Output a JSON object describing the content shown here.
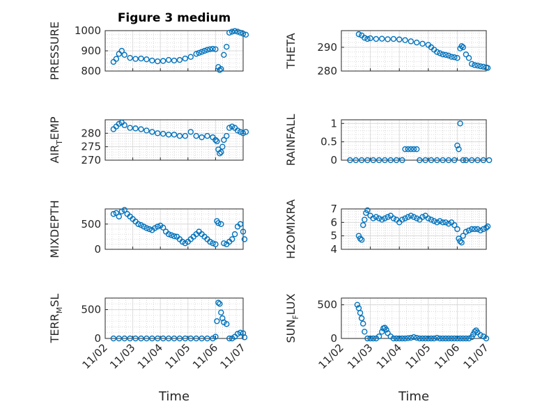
{
  "title": "Figure 3 medium",
  "x_tick_labels": [
    "11/02",
    "11/03",
    "11/04",
    "11/05",
    "11/06",
    "11/07"
  ],
  "marker_color": "#0072BD",
  "chart_data": [
    {
      "type": "scatter",
      "id": "pressure",
      "title": "Figure 3 medium",
      "ylabel": "PRESSURE",
      "ylabel_sub": "",
      "ylabel_post": "",
      "xlim": [
        0,
        5
      ],
      "ylim": [
        800,
        1000
      ],
      "yticks": [
        800,
        900,
        1000
      ],
      "xlabel": "",
      "grid": true,
      "x": [
        0.3,
        0.4,
        0.5,
        0.6,
        0.7,
        0.9,
        1.1,
        1.3,
        1.5,
        1.7,
        1.9,
        2.1,
        2.3,
        2.5,
        2.7,
        2.9,
        3.1,
        3.3,
        3.4,
        3.5,
        3.6,
        3.7,
        3.8,
        3.9,
        4.0,
        4.1,
        4.15,
        4.2,
        4.3,
        4.4,
        4.5,
        4.6,
        4.7,
        4.8,
        4.9,
        5.0,
        5.1
      ],
      "y": [
        845,
        860,
        885,
        900,
        880,
        865,
        860,
        862,
        858,
        852,
        848,
        850,
        855,
        852,
        855,
        862,
        870,
        885,
        890,
        895,
        900,
        905,
        908,
        910,
        908,
        820,
        805,
        810,
        880,
        920,
        990,
        995,
        998,
        995,
        990,
        985,
        980
      ]
    },
    {
      "type": "scatter",
      "id": "theta",
      "ylabel": "THETA",
      "ylabel_sub": "",
      "ylabel_post": "",
      "xlim": [
        0,
        5
      ],
      "ylim": [
        280,
        297
      ],
      "yticks": [
        280,
        290
      ],
      "xlabel": "",
      "grid": true,
      "x": [
        0.6,
        0.7,
        0.8,
        0.9,
        1.0,
        1.2,
        1.4,
        1.6,
        1.8,
        2.0,
        2.2,
        2.4,
        2.6,
        2.8,
        3.0,
        3.1,
        3.2,
        3.3,
        3.4,
        3.5,
        3.6,
        3.7,
        3.8,
        3.9,
        4.0,
        4.1,
        4.15,
        4.2,
        4.3,
        4.4,
        4.5,
        4.6,
        4.7,
        4.8,
        4.9,
        5.0,
        5.05
      ],
      "y": [
        295.5,
        295.0,
        294.0,
        293.5,
        293.8,
        293.5,
        293.6,
        293.4,
        293.5,
        293.3,
        293.0,
        292.5,
        292.0,
        291.5,
        291.0,
        290.0,
        289.0,
        288.0,
        287.5,
        287.0,
        286.8,
        286.5,
        286.0,
        285.8,
        285.5,
        289.5,
        290.5,
        290.0,
        287.0,
        285.5,
        283.0,
        282.5,
        282.3,
        282.0,
        281.8,
        281.5,
        281.3
      ]
    },
    {
      "type": "scatter",
      "id": "air_temp",
      "ylabel": "AIR",
      "ylabel_sub": "T",
      "ylabel_post": "EMP",
      "xlim": [
        0,
        5
      ],
      "ylim": [
        270,
        285
      ],
      "yticks": [
        270,
        275,
        280
      ],
      "xlabel": "",
      "grid": true,
      "x": [
        0.3,
        0.4,
        0.5,
        0.6,
        0.7,
        0.9,
        1.1,
        1.3,
        1.5,
        1.7,
        1.9,
        2.1,
        2.3,
        2.5,
        2.7,
        2.9,
        3.1,
        3.3,
        3.5,
        3.7,
        3.9,
        4.0,
        4.05,
        4.1,
        4.15,
        4.2,
        4.25,
        4.3,
        4.4,
        4.5,
        4.6,
        4.7,
        4.8,
        4.9,
        5.0,
        5.1
      ],
      "y": [
        281.5,
        282.5,
        283.5,
        284.0,
        283.0,
        282.0,
        281.8,
        281.5,
        281.0,
        280.5,
        280.0,
        279.8,
        279.5,
        279.5,
        279.0,
        279.0,
        280.5,
        279.0,
        278.5,
        279.0,
        278.5,
        277.5,
        277.0,
        274.0,
        272.5,
        273.0,
        275.0,
        277.5,
        279.0,
        282.0,
        282.5,
        282.0,
        281.0,
        280.5,
        280.0,
        280.5
      ]
    },
    {
      "type": "scatter",
      "id": "rainfall",
      "ylabel": "RAINFALL",
      "ylabel_sub": "",
      "ylabel_post": "",
      "xlim": [
        0,
        5
      ],
      "ylim": [
        0,
        1.1
      ],
      "yticks": [
        0,
        0.5,
        1
      ],
      "xlabel": "",
      "grid": true,
      "x": [
        0.3,
        0.5,
        0.7,
        0.9,
        1.1,
        1.3,
        1.5,
        1.7,
        1.9,
        2.1,
        2.2,
        2.3,
        2.4,
        2.5,
        2.6,
        2.7,
        2.9,
        3.1,
        3.3,
        3.5,
        3.7,
        3.9,
        4.0,
        4.05,
        4.1,
        4.2,
        4.3,
        4.5,
        4.7,
        4.9,
        5.1
      ],
      "y": [
        0,
        0,
        0,
        0,
        0,
        0,
        0,
        0,
        0,
        0,
        0.3,
        0.3,
        0.3,
        0.3,
        0.3,
        0,
        0,
        0,
        0,
        0,
        0,
        0,
        0.4,
        0.3,
        1.0,
        0,
        0,
        0,
        0,
        0,
        0
      ]
    },
    {
      "type": "scatter",
      "id": "mixdepth",
      "ylabel": "MIXDEPTH",
      "ylabel_sub": "",
      "ylabel_post": "",
      "xlim": [
        0,
        5
      ],
      "ylim": [
        0,
        800
      ],
      "yticks": [
        0,
        500
      ],
      "xlabel": "",
      "grid": true,
      "x": [
        0.3,
        0.4,
        0.5,
        0.6,
        0.7,
        0.8,
        0.9,
        1.0,
        1.1,
        1.2,
        1.3,
        1.4,
        1.5,
        1.6,
        1.7,
        1.8,
        1.9,
        2.0,
        2.1,
        2.2,
        2.3,
        2.4,
        2.5,
        2.6,
        2.7,
        2.8,
        2.9,
        3.0,
        3.1,
        3.2,
        3.3,
        3.4,
        3.5,
        3.6,
        3.7,
        3.8,
        3.9,
        4.0,
        4.05,
        4.1,
        4.2,
        4.3,
        4.4,
        4.5,
        4.6,
        4.7,
        4.8,
        4.9,
        5.0,
        5.05
      ],
      "y": [
        700,
        720,
        650,
        750,
        780,
        700,
        650,
        600,
        550,
        500,
        480,
        450,
        420,
        400,
        380,
        420,
        450,
        470,
        430,
        350,
        300,
        280,
        260,
        250,
        200,
        150,
        120,
        150,
        200,
        250,
        300,
        350,
        300,
        250,
        200,
        150,
        120,
        100,
        560,
        520,
        500,
        120,
        100,
        150,
        200,
        300,
        450,
        500,
        350,
        200
      ]
    },
    {
      "type": "scatter",
      "id": "h2omixra",
      "ylabel": "H2OMIXRA",
      "ylabel_sub": "",
      "ylabel_post": "",
      "xlim": [
        0,
        5
      ],
      "ylim": [
        4,
        7
      ],
      "yticks": [
        4,
        5,
        6,
        7
      ],
      "xlabel": "",
      "grid": true,
      "x": [
        0.6,
        0.65,
        0.7,
        0.75,
        0.8,
        0.85,
        0.9,
        1.0,
        1.1,
        1.2,
        1.3,
        1.4,
        1.5,
        1.6,
        1.7,
        1.8,
        1.9,
        2.0,
        2.1,
        2.2,
        2.3,
        2.4,
        2.5,
        2.6,
        2.7,
        2.8,
        2.9,
        3.0,
        3.1,
        3.2,
        3.3,
        3.4,
        3.5,
        3.6,
        3.7,
        3.8,
        3.9,
        4.0,
        4.05,
        4.1,
        4.15,
        4.2,
        4.3,
        4.4,
        4.5,
        4.6,
        4.7,
        4.8,
        4.9,
        5.0,
        5.05
      ],
      "y": [
        5.0,
        4.8,
        4.7,
        5.8,
        6.2,
        6.7,
        6.9,
        6.5,
        6.3,
        6.4,
        6.3,
        6.2,
        6.3,
        6.4,
        6.5,
        6.3,
        6.2,
        6.0,
        6.2,
        6.3,
        6.4,
        6.5,
        6.4,
        6.3,
        6.2,
        6.4,
        6.5,
        6.3,
        6.2,
        6.1,
        6.0,
        6.1,
        6.0,
        6.0,
        5.9,
        6.0,
        5.8,
        5.5,
        4.8,
        4.6,
        4.5,
        5.0,
        5.3,
        5.4,
        5.5,
        5.5,
        5.5,
        5.4,
        5.5,
        5.6,
        5.7
      ]
    },
    {
      "type": "scatter",
      "id": "terr_msl",
      "ylabel": "TERR",
      "ylabel_sub": "M",
      "ylabel_post": "SL",
      "xlim": [
        0,
        5
      ],
      "ylim": [
        0,
        700
      ],
      "yticks": [
        0,
        500
      ],
      "xlabel": "Time",
      "grid": true,
      "x": [
        0.3,
        0.5,
        0.7,
        0.9,
        1.1,
        1.3,
        1.5,
        1.7,
        1.9,
        2.1,
        2.3,
        2.5,
        2.7,
        2.9,
        3.1,
        3.3,
        3.5,
        3.7,
        3.9,
        4.0,
        4.05,
        4.1,
        4.15,
        4.2,
        4.25,
        4.3,
        4.4,
        4.5,
        4.6,
        4.7,
        4.8,
        4.9,
        5.0,
        5.05
      ],
      "y": [
        0,
        0,
        0,
        0,
        0,
        0,
        0,
        0,
        0,
        0,
        0,
        0,
        0,
        0,
        0,
        0,
        0,
        0,
        0,
        30,
        300,
        620,
        600,
        450,
        350,
        280,
        250,
        0,
        0,
        30,
        80,
        100,
        90,
        20
      ]
    },
    {
      "type": "scatter",
      "id": "sun_flux",
      "ylabel": "SUN",
      "ylabel_sub": "F",
      "ylabel_post": "LUX",
      "xlim": [
        0,
        5
      ],
      "ylim": [
        0,
        600
      ],
      "yticks": [
        0,
        500
      ],
      "xlabel": "Time",
      "grid": true,
      "x": [
        0.55,
        0.6,
        0.65,
        0.7,
        0.75,
        0.8,
        0.9,
        1.0,
        1.1,
        1.2,
        1.3,
        1.4,
        1.45,
        1.5,
        1.55,
        1.6,
        1.7,
        1.8,
        1.9,
        2.0,
        2.1,
        2.2,
        2.3,
        2.4,
        2.5,
        2.6,
        2.7,
        2.8,
        2.9,
        3.0,
        3.1,
        3.2,
        3.3,
        3.4,
        3.5,
        3.6,
        3.7,
        3.8,
        3.9,
        4.0,
        4.1,
        4.2,
        4.3,
        4.4,
        4.5,
        4.55,
        4.6,
        4.65,
        4.7,
        4.8,
        4.9,
        5.0
      ],
      "y": [
        500,
        450,
        380,
        300,
        220,
        100,
        0,
        0,
        0,
        0,
        30,
        100,
        150,
        160,
        130,
        80,
        30,
        0,
        0,
        0,
        0,
        0,
        5,
        10,
        20,
        10,
        0,
        0,
        0,
        0,
        0,
        0,
        10,
        0,
        0,
        0,
        0,
        0,
        0,
        0,
        0,
        0,
        0,
        0,
        20,
        60,
        100,
        120,
        90,
        50,
        30,
        0
      ]
    }
  ]
}
